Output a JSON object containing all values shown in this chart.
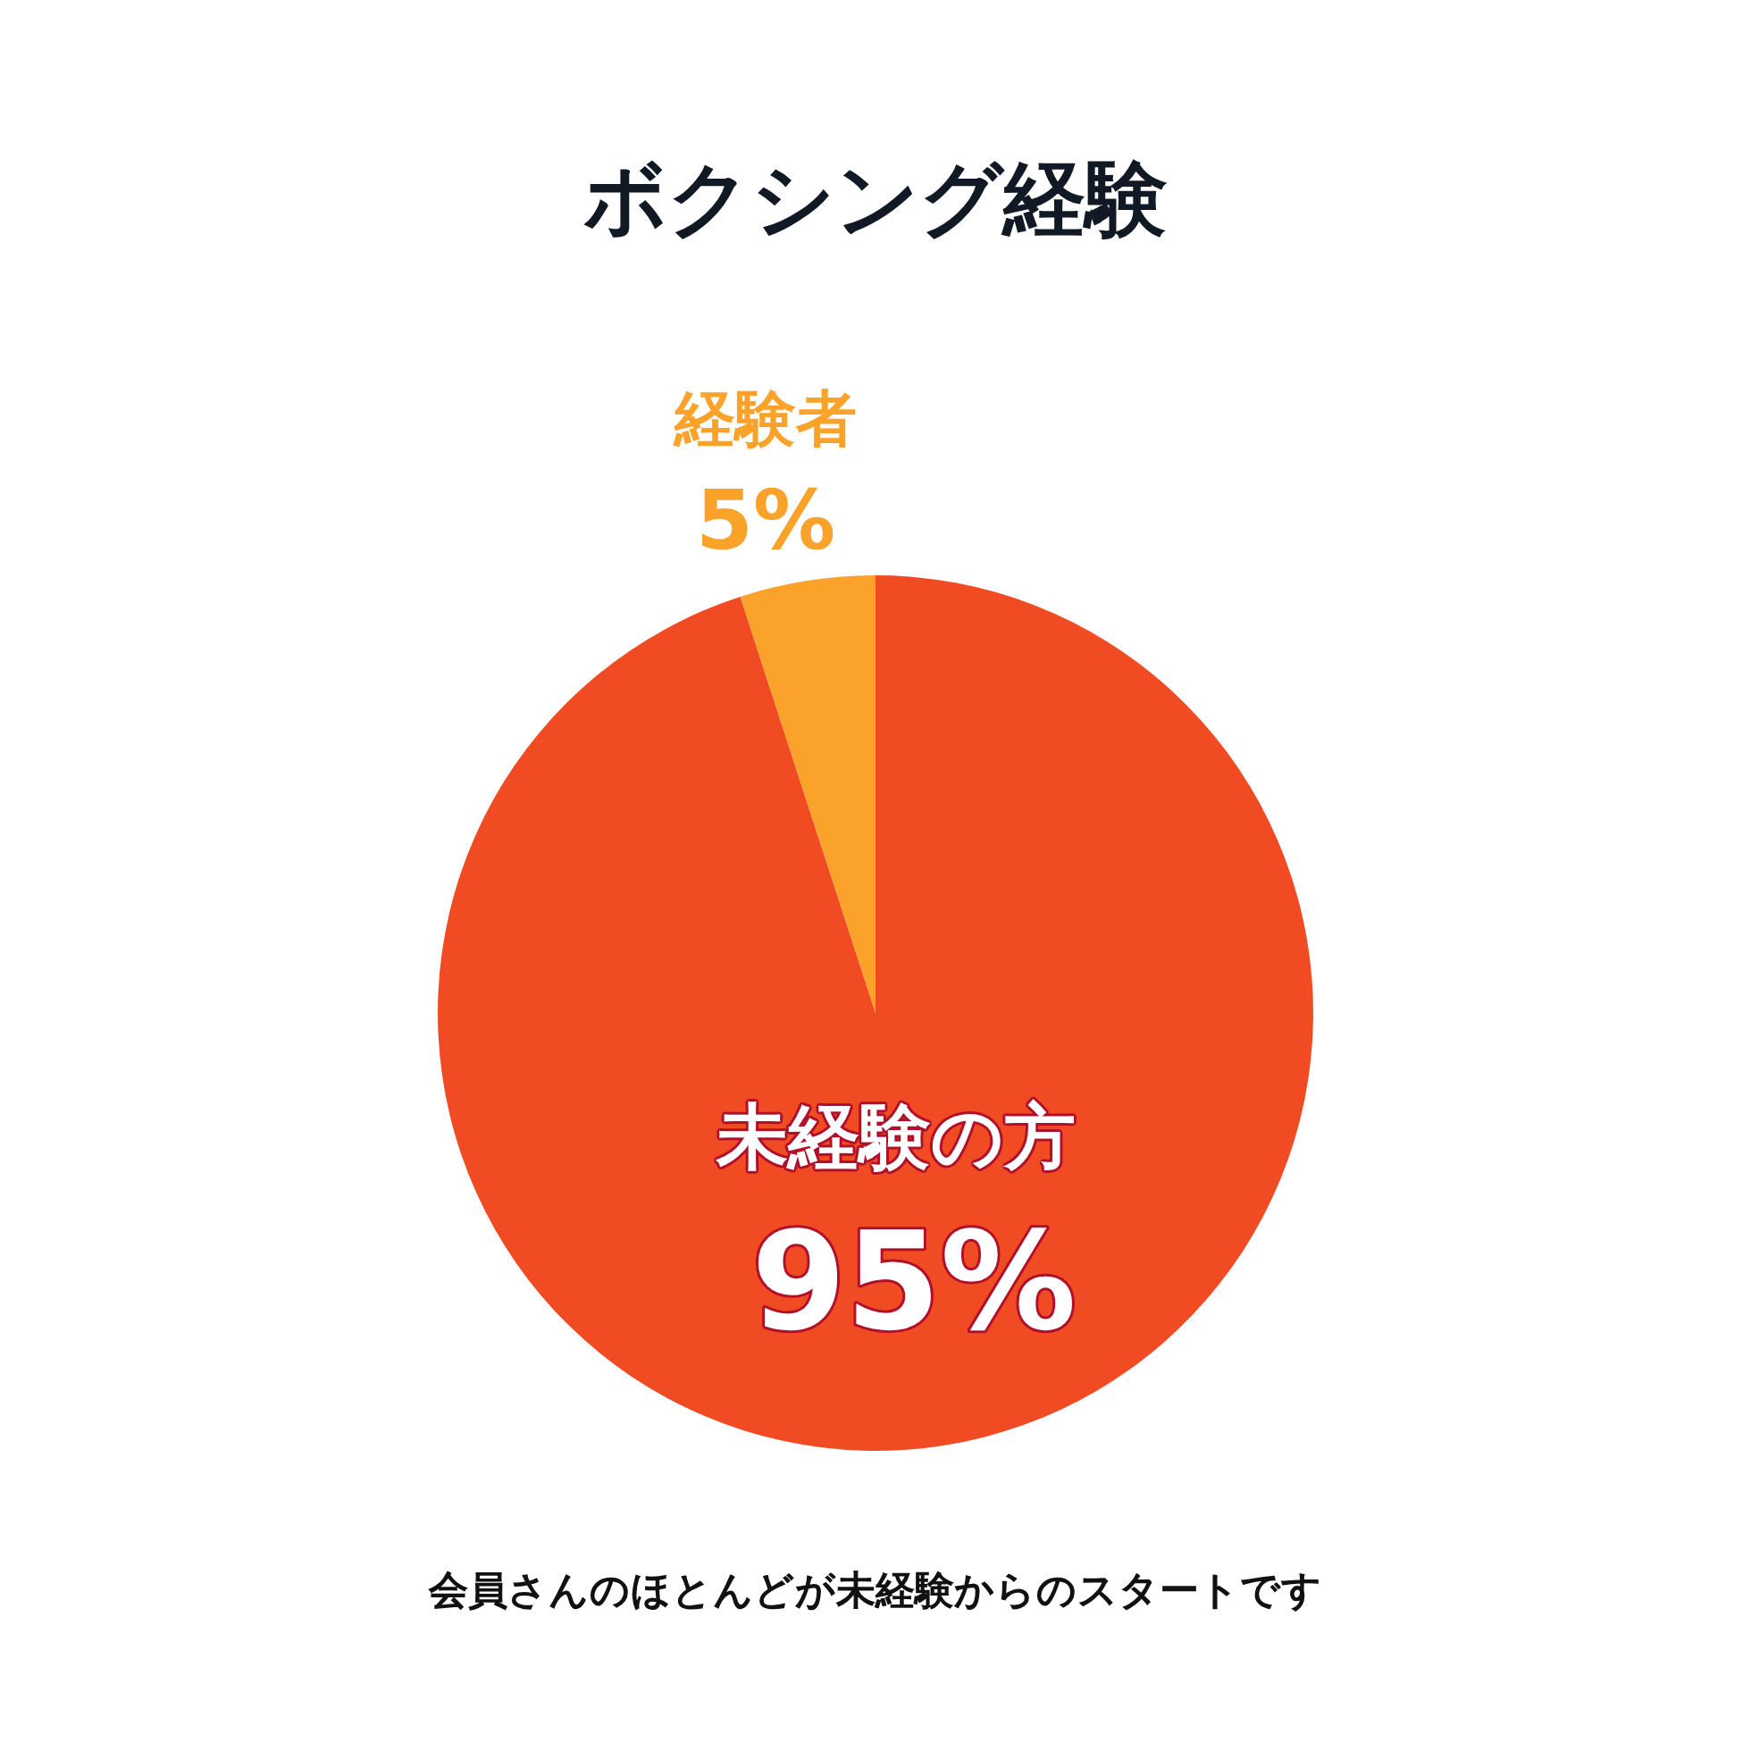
{
  "chart_data": {
    "type": "pie",
    "title": "ボクシング経験",
    "categories": [
      "未経験の方",
      "経験者"
    ],
    "values": [
      95,
      5
    ],
    "colors": [
      "#f04b23",
      "#fba22b"
    ],
    "value_labels": [
      "95%",
      "5%"
    ],
    "legend": false,
    "annotations": [
      "会員さんのほとんどが未経験からのスタートです"
    ]
  }
}
